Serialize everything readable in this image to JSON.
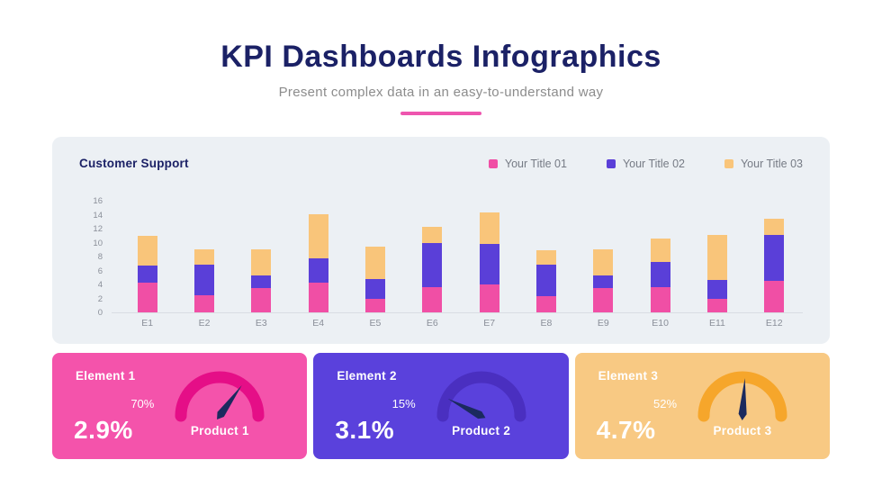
{
  "header": {
    "title": "KPI Dashboards Infographics",
    "subtitle": "Present complex data in an easy-to-understand way"
  },
  "chart_data": {
    "type": "bar",
    "stacked": true,
    "title": "Customer Support",
    "categories": [
      "E1",
      "E2",
      "E3",
      "E4",
      "E5",
      "E6",
      "E7",
      "E8",
      "E9",
      "E10",
      "E11",
      "E12"
    ],
    "series": [
      {
        "name": "Your Title 01",
        "color": "#f04fa5",
        "values": [
          4.2,
          2.5,
          3.5,
          4.2,
          2.0,
          3.6,
          4.0,
          2.3,
          3.5,
          3.6,
          2.0,
          4.5
        ]
      },
      {
        "name": "Your Title 02",
        "color": "#5a3fd8",
        "values": [
          2.5,
          4.4,
          1.8,
          3.5,
          2.8,
          6.3,
          5.8,
          4.5,
          1.8,
          3.6,
          2.6,
          6.6
        ]
      },
      {
        "name": "Your Title 03",
        "color": "#f9c57a",
        "values": [
          4.3,
          2.1,
          3.7,
          6.4,
          4.6,
          2.4,
          4.5,
          2.1,
          3.7,
          3.4,
          6.5,
          2.3
        ]
      }
    ],
    "y_ticks": [
      0,
      2,
      4,
      6,
      8,
      10,
      12,
      14,
      16
    ],
    "ylim": [
      0,
      16
    ],
    "xlabel": "",
    "ylabel": "",
    "grid": false,
    "legend_position": "top-right"
  },
  "cards": [
    {
      "title": "Element 1",
      "big_value": "2.9%",
      "gauge_label": "70%",
      "gauge_percent": 70,
      "product_label": "Product 1",
      "bg_color": "#f453ab",
      "arc_color": "#e50e87"
    },
    {
      "title": "Element 2",
      "big_value": "3.1%",
      "gauge_label": "15%",
      "gauge_percent": 15,
      "product_label": "Product 2",
      "bg_color": "#5a41dc",
      "arc_color": "#4a2fc0"
    },
    {
      "title": "Element 3",
      "big_value": "4.7%",
      "gauge_label": "52%",
      "gauge_percent": 52,
      "product_label": "Product 3",
      "bg_color": "#f8c983",
      "arc_color": "#f6a62b"
    }
  ],
  "colors": {
    "title_navy": "#1b2166",
    "accent_pink": "#ee55ae",
    "panel_bg": "#ecf0f4",
    "axis_text": "#8a8f99",
    "needle": "#1b2a5e"
  }
}
